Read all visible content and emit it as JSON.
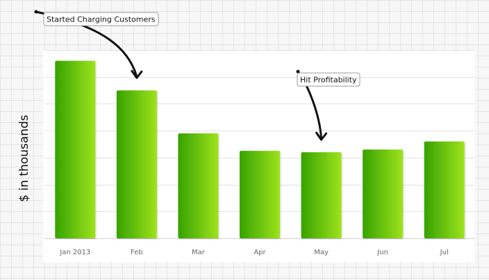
{
  "chart_data": {
    "type": "bar",
    "title": "",
    "xlabel": "",
    "ylabel": "$ in thousands",
    "categories": [
      "Jan 2013",
      "Feb",
      "Mar",
      "Apr",
      "May",
      "Jun",
      "Jul"
    ],
    "values": [
      6.6,
      5.5,
      3.9,
      3.25,
      3.2,
      3.3,
      3.6
    ],
    "ylim": [
      0,
      7
    ],
    "y_tick_labels_shown": false,
    "grid": true,
    "bar_colors": {
      "start": "#36a200",
      "end": "#9ee31c"
    },
    "annotations": [
      {
        "text": "Started Charging Customers",
        "category": "Feb"
      },
      {
        "text": "Hit Profitability",
        "category": "May"
      }
    ]
  }
}
